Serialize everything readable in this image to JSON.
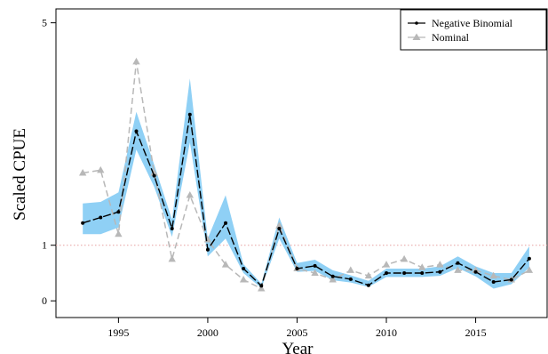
{
  "chart_data": {
    "type": "line",
    "title": "",
    "xlabel": "Year",
    "ylabel": "Scaled CPUE",
    "xlim": [
      1991.5,
      2019.0
    ],
    "ylim": [
      -0.3,
      5.25
    ],
    "x_ticks": [
      1995,
      2000,
      2005,
      2010,
      2015
    ],
    "y_ticks": [
      0,
      1,
      5
    ],
    "reference_line": {
      "y": 1,
      "color": "#e8a0a0",
      "style": "dotted"
    },
    "legend": {
      "placement": "top-right",
      "entries": [
        "Negative Binomial",
        "Nominal"
      ]
    },
    "x": [
      1993,
      1994,
      1995,
      1996,
      1997,
      1998,
      1999,
      2000,
      2001,
      2002,
      2003,
      2004,
      2005,
      2006,
      2007,
      2008,
      2009,
      2010,
      2011,
      2012,
      2013,
      2014,
      2015,
      2016,
      2017,
      2018
    ],
    "series": [
      {
        "name": "Negative Binomial",
        "color": "#000000",
        "style": "solid-dashed-points",
        "values": [
          1.4,
          1.5,
          1.6,
          3.05,
          2.25,
          1.3,
          3.35,
          0.92,
          1.4,
          0.58,
          0.27,
          1.3,
          0.58,
          0.63,
          0.44,
          0.39,
          0.28,
          0.5,
          0.5,
          0.5,
          0.52,
          0.68,
          0.52,
          0.34,
          0.38,
          0.76
        ],
        "ci_lower": [
          1.2,
          1.2,
          1.32,
          2.72,
          2.05,
          1.15,
          2.85,
          0.8,
          1.12,
          0.5,
          0.23,
          1.12,
          0.52,
          0.54,
          0.37,
          0.33,
          0.25,
          0.43,
          0.43,
          0.43,
          0.45,
          0.59,
          0.44,
          0.22,
          0.3,
          0.6
        ],
        "ci_upper": [
          1.75,
          1.78,
          1.95,
          3.4,
          2.45,
          1.46,
          4.0,
          1.12,
          1.9,
          0.66,
          0.31,
          1.5,
          0.68,
          0.74,
          0.55,
          0.46,
          0.36,
          0.58,
          0.58,
          0.58,
          0.62,
          0.8,
          0.62,
          0.5,
          0.5,
          0.98
        ],
        "band_color": "#8fd0f5"
      },
      {
        "name": "Nominal",
        "color": "#b8b8b8",
        "style": "dashed-triangles",
        "values": [
          2.3,
          2.35,
          1.2,
          4.3,
          2.3,
          0.75,
          1.9,
          1.1,
          0.65,
          0.38,
          0.22,
          1.35,
          0.58,
          0.5,
          0.38,
          0.55,
          0.45,
          0.65,
          0.75,
          0.6,
          0.65,
          0.55,
          0.55,
          0.45,
          0.38,
          0.55
        ]
      }
    ]
  }
}
